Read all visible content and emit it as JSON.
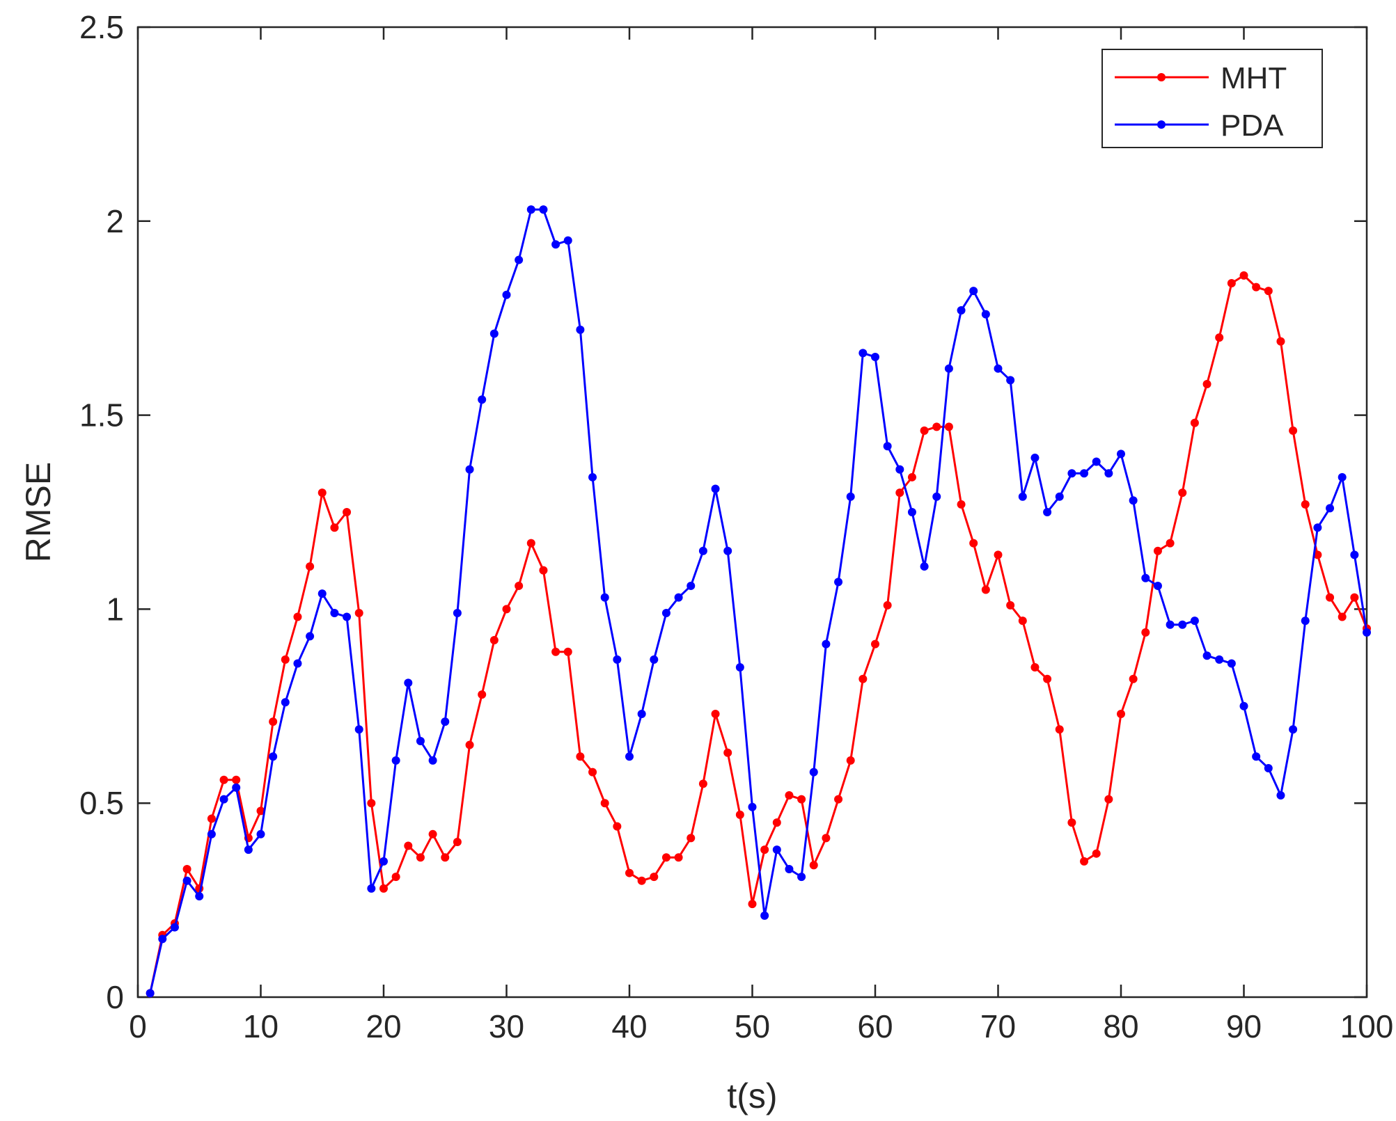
{
  "chart_data": {
    "type": "line",
    "title": "",
    "xlabel": "t(s)",
    "ylabel": "RMSE",
    "xlim": [
      0,
      100
    ],
    "ylim": [
      0,
      2.5
    ],
    "xticks": [
      "0",
      "10",
      "20",
      "30",
      "40",
      "50",
      "60",
      "70",
      "80",
      "90",
      "100"
    ],
    "yticks": [
      "0",
      "0.5",
      "1",
      "1.5",
      "2",
      "2.5"
    ],
    "grid": false,
    "legend_position": "top-right",
    "x": [
      1,
      2,
      3,
      4,
      5,
      6,
      7,
      8,
      9,
      10,
      11,
      12,
      13,
      14,
      15,
      16,
      17,
      18,
      19,
      20,
      21,
      22,
      23,
      24,
      25,
      26,
      27,
      28,
      29,
      30,
      31,
      32,
      33,
      34,
      35,
      36,
      37,
      38,
      39,
      40,
      41,
      42,
      43,
      44,
      45,
      46,
      47,
      48,
      49,
      50,
      51,
      52,
      53,
      54,
      55,
      56,
      57,
      58,
      59,
      60,
      61,
      62,
      63,
      64,
      65,
      66,
      67,
      68,
      69,
      70,
      71,
      72,
      73,
      74,
      75,
      76,
      77,
      78,
      79,
      80,
      81,
      82,
      83,
      84,
      85,
      86,
      87,
      88,
      89,
      90,
      91,
      92,
      93,
      94,
      95,
      96,
      97,
      98,
      99,
      100
    ],
    "series": [
      {
        "name": "MHT",
        "color": "#ff0000",
        "values": [
          0.01,
          0.16,
          0.19,
          0.33,
          0.28,
          0.46,
          0.56,
          0.56,
          0.41,
          0.48,
          0.71,
          0.87,
          0.98,
          1.11,
          1.3,
          1.21,
          1.25,
          0.99,
          0.5,
          0.28,
          0.31,
          0.39,
          0.36,
          0.42,
          0.36,
          0.4,
          0.65,
          0.78,
          0.92,
          1.0,
          1.06,
          1.17,
          1.1,
          0.89,
          0.89,
          0.62,
          0.58,
          0.5,
          0.44,
          0.32,
          0.3,
          0.31,
          0.36,
          0.36,
          0.41,
          0.55,
          0.73,
          0.63,
          0.47,
          0.24,
          0.38,
          0.45,
          0.52,
          0.51,
          0.34,
          0.41,
          0.51,
          0.61,
          0.82,
          0.91,
          1.01,
          1.3,
          1.34,
          1.46,
          1.47,
          1.47,
          1.27,
          1.17,
          1.05,
          1.14,
          1.01,
          0.97,
          0.85,
          0.82,
          0.69,
          0.45,
          0.35,
          0.37,
          0.51,
          0.73,
          0.82,
          0.94,
          1.15,
          1.17,
          1.3,
          1.48,
          1.58,
          1.7,
          1.84,
          1.86,
          1.83,
          1.82,
          1.69,
          1.46,
          1.27,
          1.14,
          1.03,
          0.98,
          1.03,
          0.95
        ]
      },
      {
        "name": "PDA",
        "color": "#0000ff",
        "values": [
          0.01,
          0.15,
          0.18,
          0.3,
          0.26,
          0.42,
          0.51,
          0.54,
          0.38,
          0.42,
          0.62,
          0.76,
          0.86,
          0.93,
          1.04,
          0.99,
          0.98,
          0.69,
          0.28,
          0.35,
          0.61,
          0.81,
          0.66,
          0.61,
          0.71,
          0.99,
          1.36,
          1.54,
          1.71,
          1.81,
          1.9,
          2.03,
          2.03,
          1.94,
          1.95,
          1.72,
          1.34,
          1.03,
          0.87,
          0.62,
          0.73,
          0.87,
          0.99,
          1.03,
          1.06,
          1.15,
          1.31,
          1.15,
          0.85,
          0.49,
          0.21,
          0.38,
          0.33,
          0.31,
          0.58,
          0.91,
          1.07,
          1.29,
          1.66,
          1.65,
          1.42,
          1.36,
          1.25,
          1.11,
          1.29,
          1.62,
          1.77,
          1.82,
          1.76,
          1.62,
          1.59,
          1.29,
          1.39,
          1.25,
          1.29,
          1.35,
          1.35,
          1.38,
          1.35,
          1.4,
          1.28,
          1.08,
          1.06,
          0.96,
          0.96,
          0.97,
          0.88,
          0.87,
          0.86,
          0.75,
          0.62,
          0.59,
          0.52,
          0.69,
          0.97,
          1.21,
          1.26,
          1.34,
          1.14,
          0.94
        ]
      }
    ]
  }
}
